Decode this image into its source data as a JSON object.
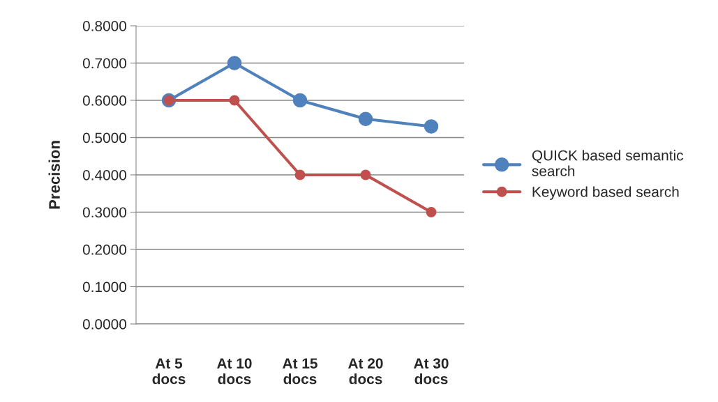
{
  "chart_data": {
    "type": "line",
    "ylabel": "Precision",
    "categories": [
      "At 5\ndocs",
      "At 10\ndocs",
      "At 15\ndocs",
      "At 20\ndocs",
      "At 30\ndocs"
    ],
    "series": [
      {
        "name": "QUICK based semantic\nsearch",
        "color": "#4f81bd",
        "values": [
          0.6,
          0.7,
          0.6,
          0.55,
          0.53
        ]
      },
      {
        "name": "Keyword based search",
        "color": "#c0504d",
        "values": [
          0.6,
          0.6,
          0.4,
          0.4,
          0.3
        ]
      }
    ],
    "ylim": [
      0,
      0.8
    ],
    "yticks": [
      {
        "value": 0,
        "label": "0.0000"
      },
      {
        "value": 0.1,
        "label": "0.1000"
      },
      {
        "value": 0.2,
        "label": "0.2000"
      },
      {
        "value": 0.3,
        "label": "0.3000"
      },
      {
        "value": 0.4,
        "label": "0.4000"
      },
      {
        "value": 0.5,
        "label": "0.5000"
      },
      {
        "value": 0.6,
        "label": "0.6000"
      },
      {
        "value": 0.7,
        "label": "0.7000"
      },
      {
        "value": 0.8,
        "label": "0.8000"
      }
    ],
    "grid": "y",
    "legend": "right",
    "marker": "circle",
    "line_style": "solid"
  }
}
